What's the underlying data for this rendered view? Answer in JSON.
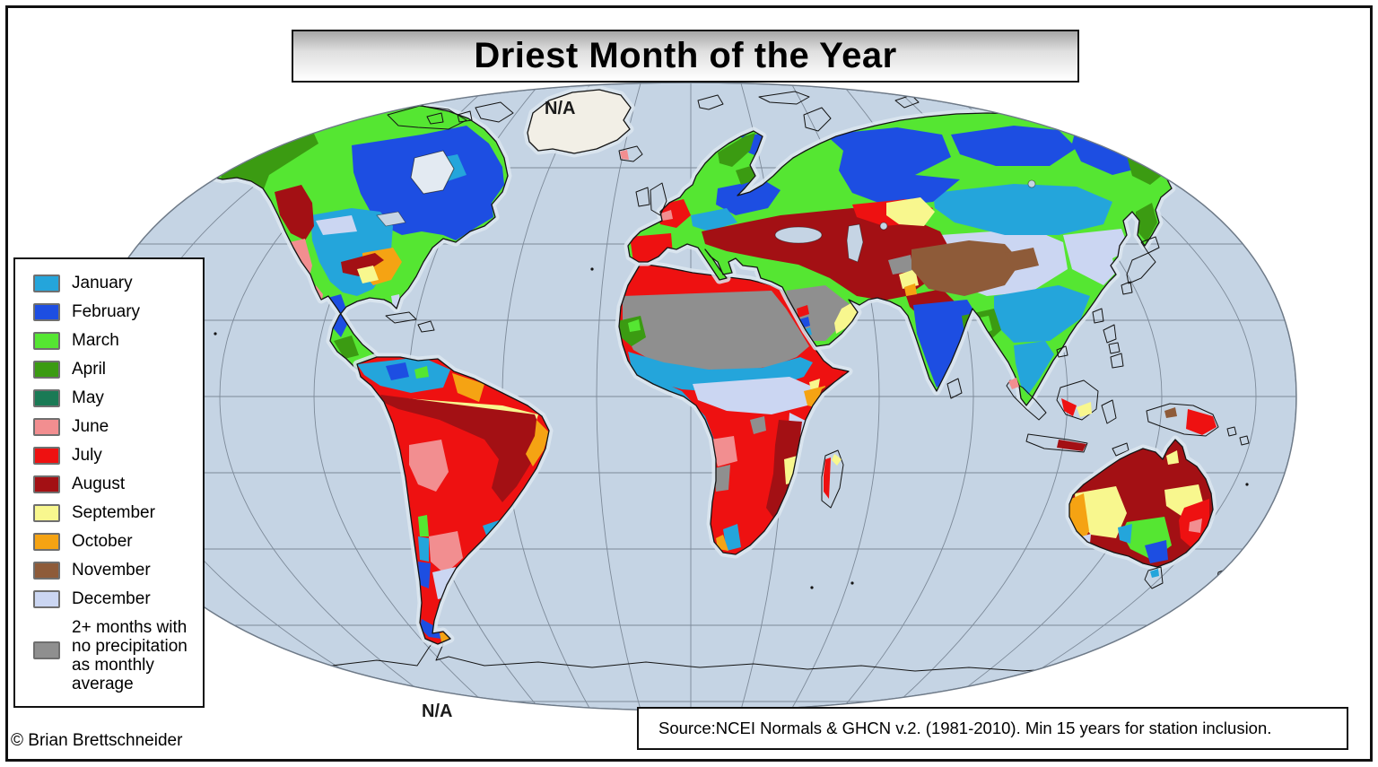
{
  "title": "Driest Month of the Year",
  "copyright": "© Brian Brettschneider",
  "source_note": "Source:NCEI Normals & GHCN v.2. (1981-2010). Min 15 years for station inclusion.",
  "map": {
    "greenland_label": "N/A",
    "antarctica_label": "N/A"
  },
  "legend": {
    "items": [
      {
        "label": "January",
        "color": "#24A5DB"
      },
      {
        "label": "February",
        "color": "#1D4EE2"
      },
      {
        "label": "March",
        "color": "#55E632"
      },
      {
        "label": "April",
        "color": "#3B9B12"
      },
      {
        "label": "May",
        "color": "#1A7A55"
      },
      {
        "label": "June",
        "color": "#F28E90"
      },
      {
        "label": "July",
        "color": "#EE1111"
      },
      {
        "label": "August",
        "color": "#A31014"
      },
      {
        "label": "September",
        "color": "#F8F78E"
      },
      {
        "label": "October",
        "color": "#F5A313"
      },
      {
        "label": "November",
        "color": "#8E5B39"
      },
      {
        "label": "December",
        "color": "#CBD6F2"
      },
      {
        "label": "2+ months with no precipitation as monthly average",
        "color": "#8F8F8F"
      }
    ]
  },
  "colors": {
    "ocean": "#C5D4E4",
    "shelf": "#DCE6F0",
    "land_na": "#F2EFE6",
    "graticule": "#7D8A99",
    "map_boundary": "#6E7A88",
    "frame": "#111111",
    "title_gradient_top": "#A6A6A6"
  }
}
